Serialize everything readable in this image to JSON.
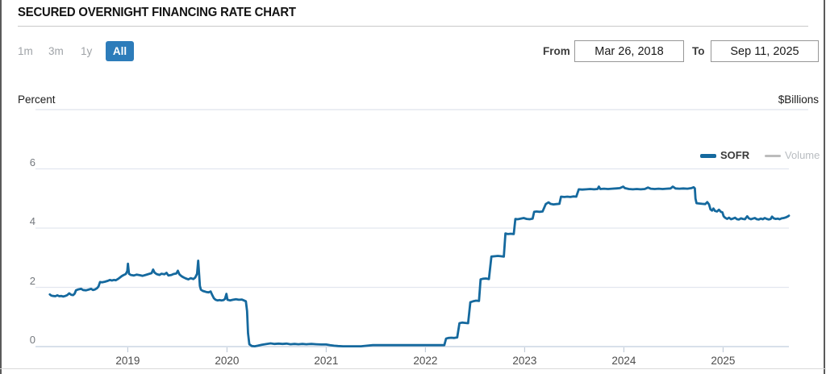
{
  "header": {
    "title": "SECURED OVERNIGHT FINANCING RATE CHART"
  },
  "range_buttons": [
    {
      "label": "1m",
      "active": false
    },
    {
      "label": "3m",
      "active": false
    },
    {
      "label": "1y",
      "active": false
    },
    {
      "label": "All",
      "active": true
    }
  ],
  "date_range": {
    "from_label": "From",
    "from_value": "Mar 26, 2018",
    "to_label": "To",
    "to_value": "Sep 11, 2025"
  },
  "legend": {
    "sofr_label": "SOFR",
    "volume_label": "Volume",
    "sofr_color": "#15699e",
    "volume_color": "#bcbcbc"
  },
  "colors": {
    "accent_button": "#2d7cba",
    "line": "#15699e",
    "gridline": "#e2e6ef",
    "zero_line": "#ccd6e4",
    "tick": "#c3cdd9",
    "top_border": "#dfe3ec"
  },
  "chart_data": {
    "type": "line",
    "title": "Secured Overnight Financing Rate",
    "ylabel_left": "Percent",
    "ylabel_right": "$Billions",
    "grid": true,
    "legend_position": "top-right",
    "xlim": [
      2018.07,
      2025.663
    ],
    "ylim": [
      0,
      8
    ],
    "x_ticks": [
      2019,
      2020,
      2021,
      2022,
      2023,
      2024,
      2025
    ],
    "y_ticks": [
      0,
      2,
      4,
      6
    ],
    "y_gridlines": [
      0,
      2,
      4,
      6
    ],
    "top_border_value": 8,
    "series": [
      {
        "name": "SOFR",
        "color": "#15699e",
        "unit": "percent",
        "visible": true,
        "points": [
          [
            2018.215,
            1.76
          ],
          [
            2018.23,
            1.72
          ],
          [
            2018.25,
            1.71
          ],
          [
            2018.27,
            1.7
          ],
          [
            2018.29,
            1.73
          ],
          [
            2018.31,
            1.7
          ],
          [
            2018.33,
            1.71
          ],
          [
            2018.35,
            1.69
          ],
          [
            2018.37,
            1.71
          ],
          [
            2018.39,
            1.74
          ],
          [
            2018.41,
            1.8
          ],
          [
            2018.43,
            1.75
          ],
          [
            2018.45,
            1.74
          ],
          [
            2018.465,
            1.79
          ],
          [
            2018.478,
            1.9
          ],
          [
            2018.5,
            1.93
          ],
          [
            2018.53,
            1.95
          ],
          [
            2018.55,
            1.91
          ],
          [
            2018.58,
            1.9
          ],
          [
            2018.61,
            1.93
          ],
          [
            2018.63,
            1.95
          ],
          [
            2018.65,
            1.91
          ],
          [
            2018.67,
            1.93
          ],
          [
            2018.69,
            1.97
          ],
          [
            2018.705,
            2.03
          ],
          [
            2018.72,
            2.18
          ],
          [
            2018.74,
            2.17
          ],
          [
            2018.77,
            2.19
          ],
          [
            2018.8,
            2.22
          ],
          [
            2018.82,
            2.25
          ],
          [
            2018.84,
            2.23
          ],
          [
            2018.86,
            2.25
          ],
          [
            2018.88,
            2.24
          ],
          [
            2018.9,
            2.28
          ],
          [
            2018.92,
            2.33
          ],
          [
            2018.94,
            2.38
          ],
          [
            2018.96,
            2.42
          ],
          [
            2018.98,
            2.45
          ],
          [
            2018.995,
            2.55
          ],
          [
            2019.002,
            2.8
          ],
          [
            2019.012,
            2.46
          ],
          [
            2019.03,
            2.42
          ],
          [
            2019.06,
            2.4
          ],
          [
            2019.09,
            2.43
          ],
          [
            2019.12,
            2.41
          ],
          [
            2019.15,
            2.39
          ],
          [
            2019.18,
            2.42
          ],
          [
            2019.21,
            2.45
          ],
          [
            2019.24,
            2.48
          ],
          [
            2019.255,
            2.6
          ],
          [
            2019.27,
            2.5
          ],
          [
            2019.29,
            2.45
          ],
          [
            2019.32,
            2.42
          ],
          [
            2019.34,
            2.46
          ],
          [
            2019.37,
            2.44
          ],
          [
            2019.39,
            2.49
          ],
          [
            2019.41,
            2.4
          ],
          [
            2019.44,
            2.42
          ],
          [
            2019.46,
            2.45
          ],
          [
            2019.49,
            2.47
          ],
          [
            2019.505,
            2.56
          ],
          [
            2019.52,
            2.44
          ],
          [
            2019.54,
            2.38
          ],
          [
            2019.56,
            2.34
          ],
          [
            2019.585,
            2.3
          ],
          [
            2019.61,
            2.27
          ],
          [
            2019.635,
            2.31
          ],
          [
            2019.66,
            2.28
          ],
          [
            2019.68,
            2.33
          ],
          [
            2019.698,
            2.46
          ],
          [
            2019.71,
            2.9
          ],
          [
            2019.72,
            2.38
          ],
          [
            2019.727,
            2.05
          ],
          [
            2019.737,
            1.92
          ],
          [
            2019.755,
            1.88
          ],
          [
            2019.775,
            1.86
          ],
          [
            2019.795,
            1.84
          ],
          [
            2019.815,
            1.83
          ],
          [
            2019.835,
            1.86
          ],
          [
            2019.853,
            1.73
          ],
          [
            2019.868,
            1.63
          ],
          [
            2019.885,
            1.58
          ],
          [
            2019.905,
            1.56
          ],
          [
            2019.925,
            1.57
          ],
          [
            2019.945,
            1.56
          ],
          [
            2019.965,
            1.57
          ],
          [
            2019.98,
            1.61
          ],
          [
            2019.994,
            1.78
          ],
          [
            2020.005,
            1.58
          ],
          [
            2020.03,
            1.56
          ],
          [
            2020.06,
            1.58
          ],
          [
            2020.09,
            1.6
          ],
          [
            2020.12,
            1.58
          ],
          [
            2020.15,
            1.59
          ],
          [
            2020.17,
            1.56
          ],
          [
            2020.19,
            1.53
          ],
          [
            2020.202,
            1.2
          ],
          [
            2020.212,
            0.45
          ],
          [
            2020.225,
            0.08
          ],
          [
            2020.25,
            0.02
          ],
          [
            2020.28,
            0.01
          ],
          [
            2020.31,
            0.03
          ],
          [
            2020.35,
            0.06
          ],
          [
            2020.4,
            0.09
          ],
          [
            2020.44,
            0.11
          ],
          [
            2020.48,
            0.09
          ],
          [
            2020.52,
            0.1
          ],
          [
            2020.56,
            0.09
          ],
          [
            2020.6,
            0.1
          ],
          [
            2020.64,
            0.08
          ],
          [
            2020.68,
            0.09
          ],
          [
            2020.72,
            0.08
          ],
          [
            2020.76,
            0.09
          ],
          [
            2020.8,
            0.08
          ],
          [
            2020.85,
            0.09
          ],
          [
            2020.9,
            0.08
          ],
          [
            2020.95,
            0.07
          ],
          [
            2021.0,
            0.07
          ],
          [
            2021.04,
            0.05
          ],
          [
            2021.08,
            0.03
          ],
          [
            2021.12,
            0.02
          ],
          [
            2021.17,
            0.01
          ],
          [
            2021.23,
            0.01
          ],
          [
            2021.29,
            0.01
          ],
          [
            2021.35,
            0.01
          ],
          [
            2021.41,
            0.03
          ],
          [
            2021.47,
            0.05
          ],
          [
            2021.53,
            0.05
          ],
          [
            2021.6,
            0.05
          ],
          [
            2021.67,
            0.05
          ],
          [
            2021.74,
            0.05
          ],
          [
            2021.81,
            0.05
          ],
          [
            2021.88,
            0.05
          ],
          [
            2021.95,
            0.05
          ],
          [
            2022.02,
            0.05
          ],
          [
            2022.09,
            0.05
          ],
          [
            2022.15,
            0.05
          ],
          [
            2022.19,
            0.05
          ],
          [
            2022.208,
            0.27
          ],
          [
            2022.23,
            0.29
          ],
          [
            2022.26,
            0.3
          ],
          [
            2022.29,
            0.29
          ],
          [
            2022.32,
            0.31
          ],
          [
            2022.343,
            0.79
          ],
          [
            2022.37,
            0.81
          ],
          [
            2022.4,
            0.8
          ],
          [
            2022.43,
            0.79
          ],
          [
            2022.453,
            1.5
          ],
          [
            2022.48,
            1.53
          ],
          [
            2022.51,
            1.55
          ],
          [
            2022.54,
            1.54
          ],
          [
            2022.556,
            2.27
          ],
          [
            2022.58,
            2.29
          ],
          [
            2022.61,
            2.3
          ],
          [
            2022.64,
            2.28
          ],
          [
            2022.665,
            3.04
          ],
          [
            2022.7,
            3.05
          ],
          [
            2022.73,
            3.06
          ],
          [
            2022.76,
            3.05
          ],
          [
            2022.79,
            3.04
          ],
          [
            2022.806,
            3.82
          ],
          [
            2022.83,
            3.8
          ],
          [
            2022.86,
            3.81
          ],
          [
            2022.89,
            3.8
          ],
          [
            2022.906,
            4.31
          ],
          [
            2022.93,
            4.3
          ],
          [
            2022.96,
            4.32
          ],
          [
            2022.99,
            4.34
          ],
          [
            2023.02,
            4.31
          ],
          [
            2023.05,
            4.3
          ],
          [
            2023.08,
            4.32
          ],
          [
            2023.096,
            4.55
          ],
          [
            2023.12,
            4.56
          ],
          [
            2023.15,
            4.55
          ],
          [
            2023.18,
            4.56
          ],
          [
            2023.213,
            4.81
          ],
          [
            2023.24,
            4.87
          ],
          [
            2023.26,
            4.82
          ],
          [
            2023.29,
            4.8
          ],
          [
            2023.32,
            4.81
          ],
          [
            2023.35,
            4.82
          ],
          [
            2023.366,
            5.06
          ],
          [
            2023.4,
            5.05
          ],
          [
            2023.43,
            5.06
          ],
          [
            2023.46,
            5.05
          ],
          [
            2023.49,
            5.07
          ],
          [
            2023.52,
            5.06
          ],
          [
            2023.545,
            5.31
          ],
          [
            2023.58,
            5.3
          ],
          [
            2023.62,
            5.31
          ],
          [
            2023.66,
            5.32
          ],
          [
            2023.7,
            5.31
          ],
          [
            2023.735,
            5.32
          ],
          [
            2023.748,
            5.4
          ],
          [
            2023.762,
            5.32
          ],
          [
            2023.8,
            5.33
          ],
          [
            2023.84,
            5.32
          ],
          [
            2023.88,
            5.33
          ],
          [
            2023.92,
            5.34
          ],
          [
            2023.96,
            5.35
          ],
          [
            2023.993,
            5.4
          ],
          [
            2024.01,
            5.35
          ],
          [
            2024.05,
            5.32
          ],
          [
            2024.09,
            5.31
          ],
          [
            2024.13,
            5.32
          ],
          [
            2024.17,
            5.31
          ],
          [
            2024.21,
            5.32
          ],
          [
            2024.243,
            5.37
          ],
          [
            2024.27,
            5.33
          ],
          [
            2024.31,
            5.32
          ],
          [
            2024.35,
            5.33
          ],
          [
            2024.39,
            5.32
          ],
          [
            2024.43,
            5.33
          ],
          [
            2024.47,
            5.34
          ],
          [
            2024.493,
            5.4
          ],
          [
            2024.52,
            5.34
          ],
          [
            2024.56,
            5.33
          ],
          [
            2024.6,
            5.34
          ],
          [
            2024.64,
            5.33
          ],
          [
            2024.68,
            5.35
          ],
          [
            2024.703,
            5.38
          ],
          [
            2024.715,
            5.34
          ],
          [
            2024.722,
            5.0
          ],
          [
            2024.732,
            4.84
          ],
          [
            2024.76,
            4.83
          ],
          [
            2024.79,
            4.82
          ],
          [
            2024.82,
            4.81
          ],
          [
            2024.84,
            4.88
          ],
          [
            2024.858,
            4.8
          ],
          [
            2024.873,
            4.63
          ],
          [
            2024.888,
            4.59
          ],
          [
            2024.902,
            4.66
          ],
          [
            2024.918,
            4.58
          ],
          [
            2024.938,
            4.56
          ],
          [
            2024.958,
            4.62
          ],
          [
            2024.978,
            4.55
          ],
          [
            2024.993,
            4.53
          ],
          [
            2025.005,
            4.4
          ],
          [
            2025.02,
            4.35
          ],
          [
            2025.04,
            4.31
          ],
          [
            2025.06,
            4.35
          ],
          [
            2025.08,
            4.3
          ],
          [
            2025.1,
            4.32
          ],
          [
            2025.12,
            4.35
          ],
          [
            2025.14,
            4.3
          ],
          [
            2025.16,
            4.29
          ],
          [
            2025.18,
            4.33
          ],
          [
            2025.2,
            4.31
          ],
          [
            2025.22,
            4.3
          ],
          [
            2025.243,
            4.4
          ],
          [
            2025.26,
            4.33
          ],
          [
            2025.28,
            4.3
          ],
          [
            2025.3,
            4.32
          ],
          [
            2025.32,
            4.34
          ],
          [
            2025.34,
            4.3
          ],
          [
            2025.36,
            4.29
          ],
          [
            2025.38,
            4.32
          ],
          [
            2025.4,
            4.3
          ],
          [
            2025.42,
            4.34
          ],
          [
            2025.44,
            4.31
          ],
          [
            2025.46,
            4.29
          ],
          [
            2025.48,
            4.31
          ],
          [
            2025.493,
            4.39
          ],
          [
            2025.51,
            4.33
          ],
          [
            2025.53,
            4.31
          ],
          [
            2025.55,
            4.32
          ],
          [
            2025.57,
            4.3
          ],
          [
            2025.59,
            4.33
          ],
          [
            2025.61,
            4.34
          ],
          [
            2025.63,
            4.36
          ],
          [
            2025.65,
            4.39
          ],
          [
            2025.663,
            4.42
          ]
        ]
      },
      {
        "name": "Volume",
        "color": "#bcbcbc",
        "unit": "$billions",
        "visible": false,
        "points": []
      }
    ]
  }
}
